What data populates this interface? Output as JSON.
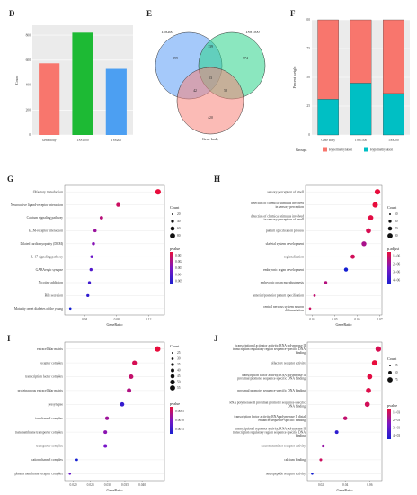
{
  "panels": {
    "D": {
      "letter": "D",
      "chart_data": {
        "type": "bar",
        "categories": [
          "Gene body",
          "TSS1500",
          "TSS200"
        ],
        "values": [
          575,
          820,
          530
        ],
        "colors": [
          "#f8766d",
          "#1dba34",
          "#4c9ff2"
        ],
        "ylabel": "Count",
        "yticks": [
          0,
          200,
          400,
          600,
          800
        ],
        "ylim": [
          0,
          880
        ]
      }
    },
    "E": {
      "letter": "E",
      "chart_data": {
        "type": "venn",
        "sets": [
          "TSS200",
          "TSS1500",
          "Gene body"
        ],
        "set_colors": [
          "#5b9cf5",
          "#2cd48b",
          "#f8837a"
        ],
        "regions": {
          "TSS200_only": "299",
          "TSS1500_only": "574",
          "GeneBody_only": "420",
          "TSS200_TSS1500": "139",
          "TSS200_GeneBody": "42",
          "TSS1500_GeneBody": "58",
          "all": "53"
        }
      }
    },
    "F": {
      "letter": "F",
      "chart_data": {
        "type": "bar",
        "stacked": true,
        "categories": [
          "Gene body",
          "TSS1500",
          "TSS200"
        ],
        "series": [
          {
            "name": "Hypermethylation",
            "color": "#f8766d",
            "values": [
              0.69,
              0.55,
              0.64
            ]
          },
          {
            "name": "Hypomethylation",
            "color": "#00bfc4",
            "values": [
              0.31,
              0.45,
              0.36
            ]
          }
        ],
        "ylabel": "Percent weight",
        "yticks": [
          0,
          25,
          50,
          75,
          100
        ],
        "ylim": [
          0,
          100
        ],
        "legend_title": "Groups",
        "legend_position": "bottom"
      }
    },
    "G": {
      "letter": "G",
      "chart_data": {
        "type": "scatter",
        "terms": [
          "Olfactory transduction",
          "Neuroactive ligand-receptor interaction",
          "Calcium signaling pathway",
          "ECM-receptor interaction",
          "Dilated cardiomyopathy (DCM)",
          "IL-17 signaling pathway",
          "GABAergic synapse",
          "Nicotine addiction",
          "Bile secretion",
          "Maturity onset diabetes of the young"
        ],
        "gene_ratio": [
          0.132,
          0.082,
          0.061,
          0.053,
          0.051,
          0.049,
          0.048,
          0.046,
          0.044,
          0.022
        ],
        "count": [
          88,
          52,
          40,
          34,
          33,
          32,
          31,
          30,
          29,
          15
        ],
        "pvalue": [
          0.0002,
          0.0005,
          0.0007,
          0.001,
          0.0012,
          0.0015,
          0.0018,
          0.002,
          0.0022,
          0.0025
        ],
        "xlabel": "GeneRatio",
        "xticks": [
          "0.04",
          "0.08",
          "0.12"
        ],
        "xlim": [
          0.015,
          0.14
        ],
        "count_title": "Count",
        "count_legend": [
          "20",
          "40",
          "60",
          "80"
        ],
        "pvalue_title": "pvalue",
        "pvalue_ticks": [
          "0.005",
          "0.004",
          "0.003",
          "0.002",
          "0.001"
        ]
      }
    },
    "H": {
      "letter": "H",
      "chart_data": {
        "type": "scatter",
        "terms": [
          "sensory perception of smell",
          "detection of chemical stimulus involved in sensory perception",
          "detection of chemical stimulus involved in sensory perception of smell",
          "pattern specification process",
          "skeletal system development",
          "regionalization",
          "embryonic organ development",
          "embryonic organ morphogenesis",
          "anterior/posterior pattern specification",
          "central nervous system neuron differentiation"
        ],
        "gene_ratio": [
          0.069,
          0.068,
          0.066,
          0.065,
          0.063,
          0.058,
          0.055,
          0.046,
          0.041,
          0.039
        ],
        "count": [
          82,
          80,
          78,
          76,
          74,
          68,
          64,
          54,
          48,
          46
        ],
        "pvalue": [
          1e-08,
          1e-08,
          2e-08,
          4e-08,
          1.2e-07,
          5e-08,
          4e-07,
          1e-07,
          8e-08,
          6e-08
        ],
        "xlabel": "GeneRatio",
        "xticks": [
          "0.04",
          "0.05",
          "0.06",
          "0.07"
        ],
        "xlim": [
          0.037,
          0.071
        ],
        "count_title": "Count",
        "count_legend": [
          "50",
          "60",
          "70",
          "80"
        ],
        "pvalue_title": "p.adjust",
        "pvalue_ticks": [
          "4e-06",
          "3e-06",
          "2e-06",
          "1e-06"
        ]
      }
    },
    "I": {
      "letter": "I",
      "chart_data": {
        "type": "scatter",
        "terms": [
          "extracellular matrix",
          "receptor complex",
          "transcription factor complex",
          "proteinaceous extracellular matrix",
          "presynapse",
          "ion channel complex",
          "transmembrane transporter complex",
          "transporter complex",
          "cation channel complex",
          "plasma membrane receptor complex"
        ],
        "gene_ratio": [
          0.0445,
          0.0378,
          0.0368,
          0.0362,
          0.0342,
          0.0298,
          0.0293,
          0.0293,
          0.021,
          0.019
        ],
        "count": [
          56,
          48,
          46,
          45,
          43,
          37,
          37,
          37,
          26,
          24
        ],
        "pvalue": [
          0.0002,
          0.0003,
          0.0004,
          0.0005,
          0.0012,
          0.0006,
          0.0007,
          0.0008,
          0.0014,
          0.0009
        ],
        "xlabel": "GeneRatio",
        "xticks": [
          "0.020",
          "0.025",
          "0.030",
          "0.035",
          "0.040"
        ],
        "xlim": [
          0.0175,
          0.0465
        ],
        "count_title": "Count",
        "count_legend": [
          "25",
          "30",
          "35",
          "40",
          "45",
          "50",
          "55"
        ],
        "pvalue_title": "pvalue",
        "pvalue_ticks": [
          "0.0015",
          "0.0010",
          "0.0005"
        ]
      }
    },
    "J": {
      "letter": "J",
      "chart_data": {
        "type": "scatter",
        "terms": [
          "transcriptional activator activity, RNA polymerase II transcription regulatory region sequence-specific DNA binding",
          "olfactory receptor activity",
          "transcription factor activity, RNA polymerase II proximal promoter sequence-specific DNA binding",
          "proximal promoter sequence-specific DNA binding",
          "RNA polymerase II proximal promoter sequence-specific DNA binding",
          "transcription factor activity, RNA polymerase II distal enhancer sequence-specific binding",
          "transcriptional repressor activity, RNA polymerase II transcription regulatory region sequence-specific DNA binding",
          "neurotransmitter receptor activity",
          "calcium binding",
          "neuropeptide receptor activity"
        ],
        "gene_ratio": [
          0.067,
          0.064,
          0.06,
          0.059,
          0.058,
          0.04,
          0.033,
          0.022,
          0.02,
          0.013
        ],
        "count": [
          80,
          77,
          72,
          71,
          70,
          48,
          40,
          27,
          25,
          16
        ],
        "pvalue": [
          0.0008,
          0.0005,
          0.0006,
          0.0007,
          0.0009,
          0.0012,
          0.004,
          0.002,
          0.001,
          0.0045
        ],
        "xlabel": "GeneRatio",
        "xticks": [
          "0.02",
          "0.04",
          "0.06"
        ],
        "xlim": [
          0.009,
          0.07
        ],
        "count_title": "Count",
        "count_legend": [
          "25",
          "50",
          "75"
        ],
        "pvalue_title": "pvalue",
        "pvalue_ticks": [
          "4e-03",
          "3e-03",
          "2e-03",
          "1e-03"
        ]
      }
    }
  }
}
